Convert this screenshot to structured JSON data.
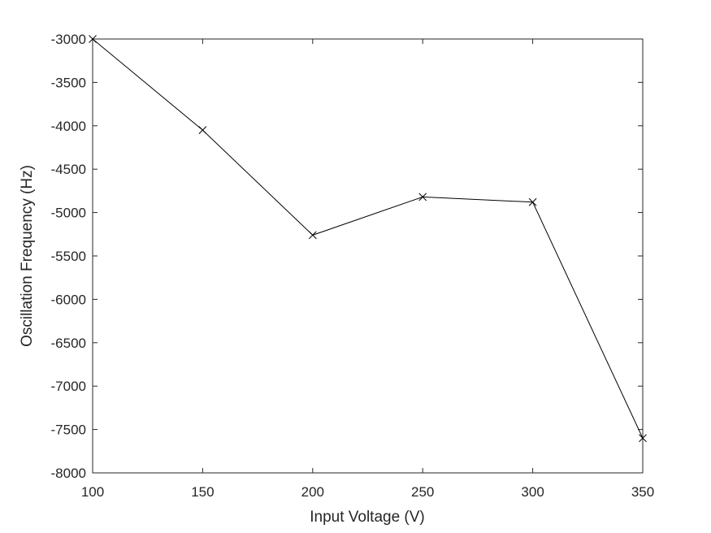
{
  "chart_data": {
    "type": "line",
    "title": "",
    "xlabel": "Input Voltage (V)",
    "ylabel": "Oscillation Frequency (Hz)",
    "xlim": [
      100,
      350
    ],
    "ylim": [
      -8000,
      -3000
    ],
    "xticks": [
      100,
      150,
      200,
      250,
      300,
      350
    ],
    "yticks": [
      -3000,
      -3500,
      -4000,
      -4500,
      -5000,
      -5500,
      -6000,
      -6500,
      -7000,
      -7500,
      -8000
    ],
    "grid": false,
    "legend": "none",
    "series": [
      {
        "marker": "x",
        "color": "#000000",
        "x": [
          100,
          150,
          200,
          250,
          300,
          350
        ],
        "y": [
          -3000,
          -4050,
          -5260,
          -4820,
          -4880,
          -7600
        ]
      }
    ]
  }
}
